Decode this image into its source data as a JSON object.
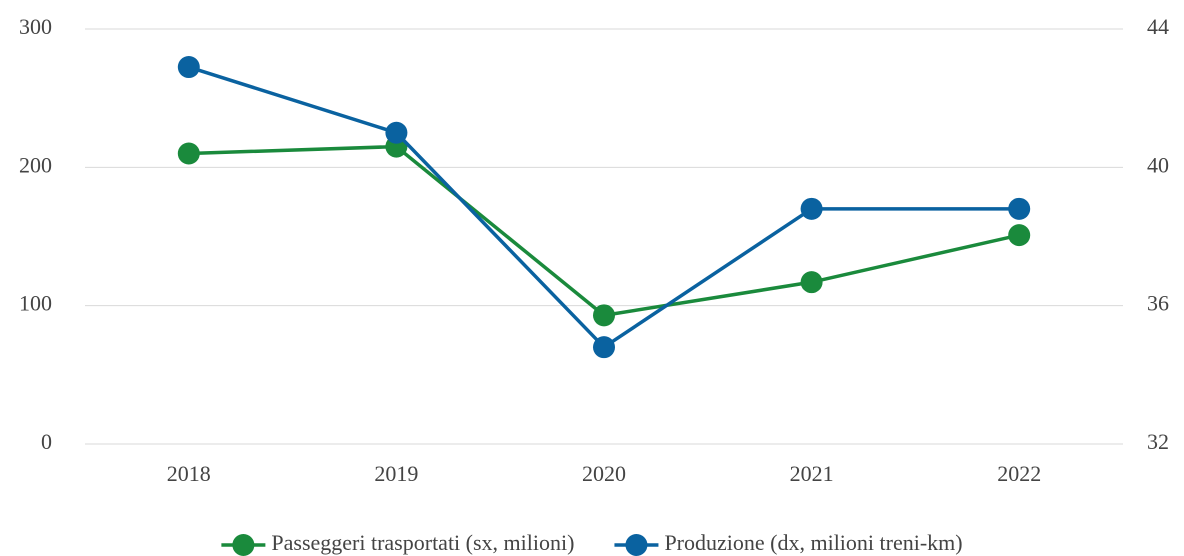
{
  "chart_data": {
    "type": "line",
    "categories": [
      "2018",
      "2019",
      "2020",
      "2021",
      "2022"
    ],
    "series": [
      {
        "name": "Passeggeri trasportati (sx, milioni)",
        "color": "#1a8a3c",
        "values": [
          210,
          215,
          93,
          117,
          151
        ]
      },
      {
        "name": "Produzione (dx, milioni treni-km)",
        "color": "#0a62a0",
        "axis": "y2",
        "values": [
          42.9,
          41.0,
          34.8,
          38.8,
          38.8
        ]
      }
    ],
    "ylim": [
      0,
      300
    ],
    "yticks": [
      0,
      100,
      200,
      300
    ],
    "y2lim": [
      32,
      44
    ],
    "y2ticks": [
      32,
      36,
      40,
      44
    ],
    "grid": true,
    "legend": "bottom"
  }
}
